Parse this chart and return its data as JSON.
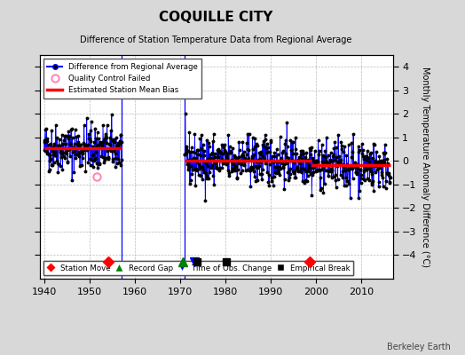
{
  "title": "COQUILLE CITY",
  "subtitle": "Difference of Station Temperature Data from Regional Average",
  "ylabel_right": "Monthly Temperature Anomaly Difference (°C)",
  "background_color": "#d8d8d8",
  "plot_bg_color": "#ffffff",
  "xlim": [
    1939,
    2017
  ],
  "ylim": [
    -5,
    4.5
  ],
  "yticks": [
    -4,
    -3,
    -2,
    -1,
    0,
    1,
    2,
    3,
    4
  ],
  "xticks": [
    1940,
    1950,
    1960,
    1970,
    1980,
    1990,
    2000,
    2010
  ],
  "watermark": "Berkeley Earth",
  "segment1_start": 1940.0,
  "segment1_end": 1957.2,
  "segment1_bias": 0.55,
  "segment2_start": 1971.0,
  "segment2_end": 1999.0,
  "segment2_bias": 0.02,
  "segment3_start": 1999.0,
  "segment3_end": 2016.5,
  "segment3_bias": -0.18,
  "station_moves": [
    1954.2,
    1998.7
  ],
  "record_gaps": [
    1970.7
  ],
  "obs_changes": [
    1973.2
  ],
  "empirical_breaks": [
    1973.7,
    1980.2
  ],
  "qc_failed_year": 1951.7,
  "qc_failed_value": -0.65,
  "gap1_x": 1957.2,
  "gap2_x": 1971.0,
  "line_color": "#0000ff",
  "dot_color": "#000000",
  "bias_color": "#ff0000"
}
